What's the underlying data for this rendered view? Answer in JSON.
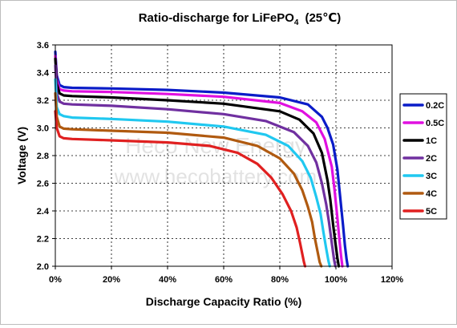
{
  "chart_data": {
    "type": "line",
    "title": "Ratio-discharge for LiFePO",
    "title_subscript": "4",
    "title_suffix": "(25℃)",
    "xlabel": "Discharge Capacity Ratio (%)",
    "ylabel": "Voltage (V)",
    "xlim": [
      0,
      120
    ],
    "ylim": [
      2.0,
      3.6
    ],
    "x_ticks": [
      0,
      20,
      40,
      60,
      80,
      100,
      120
    ],
    "x_tick_labels": [
      "0%",
      "20%",
      "40%",
      "60%",
      "80%",
      "100%",
      "120%"
    ],
    "y_ticks": [
      2.0,
      2.2,
      2.4,
      2.6,
      2.8,
      3.0,
      3.2,
      3.4,
      3.6
    ],
    "y_tick_labels": [
      "2.0",
      "2.2",
      "2.4",
      "2.6",
      "2.8",
      "3.0",
      "3.2",
      "3.4",
      "3.6"
    ],
    "grid": true,
    "legend_position": "right",
    "watermark": [
      "Heco New Energy",
      "www.hecobattery.com"
    ],
    "series": [
      {
        "name": "0.2C",
        "color": "#0a1cc8",
        "x": [
          0,
          0.5,
          1.5,
          3,
          6,
          20,
          40,
          60,
          80,
          90,
          95,
          97,
          99,
          100.5,
          101.5,
          102.5,
          103.2,
          103.8,
          104.2
        ],
        "y": [
          3.55,
          3.38,
          3.31,
          3.295,
          3.29,
          3.285,
          3.275,
          3.255,
          3.22,
          3.17,
          3.08,
          3.0,
          2.88,
          2.7,
          2.5,
          2.3,
          2.15,
          2.05,
          2.0
        ]
      },
      {
        "name": "0.5C",
        "color": "#e010e0",
        "x": [
          0,
          0.5,
          1.5,
          3,
          6,
          20,
          40,
          60,
          80,
          88,
          93,
          96,
          98.5,
          99.5,
          100.5,
          101.2,
          101.8,
          102.3
        ],
        "y": [
          3.52,
          3.35,
          3.28,
          3.27,
          3.265,
          3.26,
          3.245,
          3.225,
          3.18,
          3.12,
          3.04,
          2.92,
          2.72,
          2.55,
          2.35,
          2.2,
          2.08,
          2.0
        ]
      },
      {
        "name": "1C",
        "color": "#000000",
        "x": [
          0,
          0.5,
          1.5,
          3,
          6,
          20,
          40,
          60,
          80,
          87,
          92,
          95,
          97,
          98,
          99,
          99.8,
          100.5,
          101
        ],
        "y": [
          3.5,
          3.32,
          3.25,
          3.235,
          3.23,
          3.22,
          3.2,
          3.175,
          3.12,
          3.06,
          2.96,
          2.82,
          2.62,
          2.48,
          2.3,
          2.17,
          2.06,
          2.0
        ]
      },
      {
        "name": "2C",
        "color": "#7030a0",
        "x": [
          0,
          0.5,
          1.5,
          3,
          6,
          20,
          40,
          60,
          75,
          85,
          90,
          93,
          95,
          96.5,
          97.5,
          98.5,
          99.3,
          99.8
        ],
        "y": [
          3.45,
          3.25,
          3.19,
          3.175,
          3.17,
          3.16,
          3.135,
          3.1,
          3.05,
          2.97,
          2.87,
          2.75,
          2.6,
          2.45,
          2.32,
          2.17,
          2.05,
          2.0
        ]
      },
      {
        "name": "3C",
        "color": "#20c8f0",
        "x": [
          0,
          0.5,
          1.5,
          3,
          6,
          20,
          40,
          60,
          75,
          83,
          88,
          91,
          93,
          94.5,
          95.5,
          96.5,
          97.3,
          97.8
        ],
        "y": [
          3.35,
          3.15,
          3.1,
          3.085,
          3.075,
          3.065,
          3.045,
          3.01,
          2.95,
          2.87,
          2.76,
          2.64,
          2.5,
          2.38,
          2.25,
          2.13,
          2.04,
          2.0
        ]
      },
      {
        "name": "4C",
        "color": "#b05a10",
        "x": [
          0,
          0.5,
          1.5,
          3,
          6,
          20,
          40,
          60,
          72,
          80,
          85,
          88,
          90,
          91.5,
          92.5,
          93.5,
          94.2,
          94.8
        ],
        "y": [
          3.25,
          3.08,
          3.01,
          2.995,
          2.99,
          2.98,
          2.965,
          2.93,
          2.87,
          2.78,
          2.67,
          2.55,
          2.43,
          2.32,
          2.2,
          2.1,
          2.03,
          2.0
        ]
      },
      {
        "name": "5C",
        "color": "#e02020",
        "x": [
          0,
          0.5,
          1.5,
          3,
          6,
          20,
          40,
          55,
          65,
          72,
          77,
          81,
          84,
          86,
          87.2,
          88,
          88.6,
          89
        ],
        "y": [
          3.12,
          3.0,
          2.94,
          2.925,
          2.92,
          2.91,
          2.895,
          2.87,
          2.82,
          2.74,
          2.64,
          2.52,
          2.4,
          2.28,
          2.17,
          2.09,
          2.03,
          2.0
        ]
      }
    ]
  }
}
